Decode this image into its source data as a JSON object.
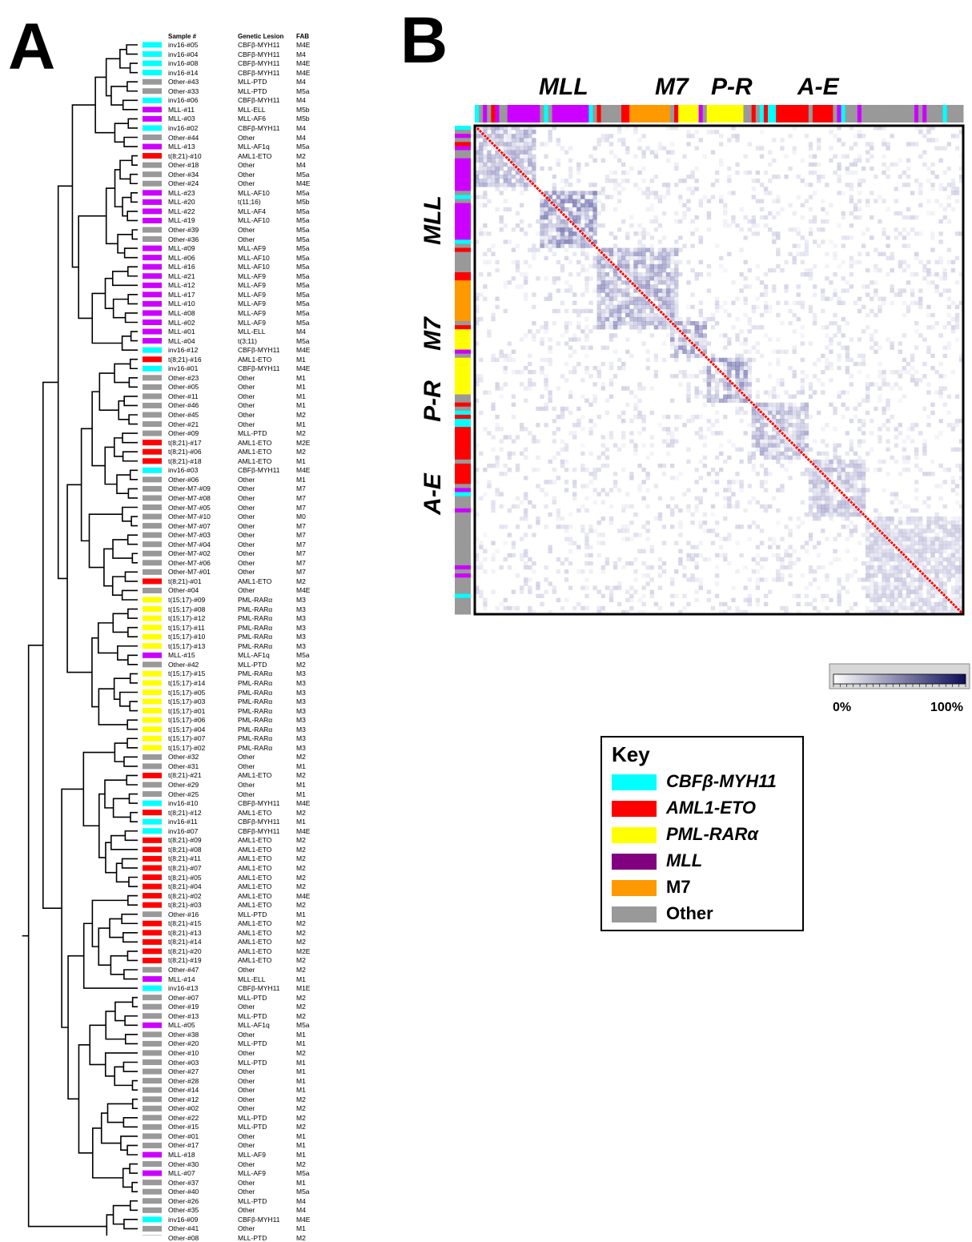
{
  "panels": {
    "a": "A",
    "b": "B"
  },
  "headers": {
    "sample": "Sample #",
    "lesion": "Genetic Lesion",
    "fab": "FAB"
  },
  "colors": {
    "cyan": "#00ffff",
    "red": "#ff0000",
    "yellow": "#ffff00",
    "purple": "#cc00ff",
    "orange": "#ff9900",
    "gray": "#999999",
    "key_purple": "#800080"
  },
  "rows": [
    {
      "s": "inv16-#05",
      "l": "CBFβ-MYH11",
      "f": "M4E",
      "c": "cyan"
    },
    {
      "s": "inv16-#04",
      "l": "CBFβ-MYH11",
      "f": "M4",
      "c": "cyan"
    },
    {
      "s": "inv16-#08",
      "l": "CBFβ-MYH11",
      "f": "M4E",
      "c": "cyan"
    },
    {
      "s": "inv16-#14",
      "l": "CBFβ-MYH11",
      "f": "M4E",
      "c": "cyan"
    },
    {
      "s": "Other-#43",
      "l": "MLL-PTD",
      "f": "M4",
      "c": "gray"
    },
    {
      "s": "Other-#33",
      "l": "MLL-PTD",
      "f": "M5a",
      "c": "gray"
    },
    {
      "s": "inv16-#06",
      "l": "CBFβ-MYH11",
      "f": "M4",
      "c": "cyan"
    },
    {
      "s": "MLL-#11",
      "l": "MLL-ELL",
      "f": "M5b",
      "c": "purple"
    },
    {
      "s": "MLL-#03",
      "l": "MLL-AF6",
      "f": "M5b",
      "c": "purple"
    },
    {
      "s": "inv16-#02",
      "l": "CBFβ-MYH11",
      "f": "M4",
      "c": "cyan"
    },
    {
      "s": "Other-#44",
      "l": "Other",
      "f": "M4",
      "c": "gray"
    },
    {
      "s": "MLL-#13",
      "l": "MLL-AF1q",
      "f": "M5a",
      "c": "purple"
    },
    {
      "s": "t(8;21)-#10",
      "l": "AML1-ETO",
      "f": "M2",
      "c": "red"
    },
    {
      "s": "Other-#18",
      "l": "Other",
      "f": "M4",
      "c": "gray"
    },
    {
      "s": "Other-#34",
      "l": "Other",
      "f": "M5a",
      "c": "gray"
    },
    {
      "s": "Other-#24",
      "l": "Other",
      "f": "M4E",
      "c": "gray"
    },
    {
      "s": "MLL-#23",
      "l": "MLL-AF10",
      "f": "M5a",
      "c": "purple"
    },
    {
      "s": "MLL-#20",
      "l": "t(11;16)",
      "f": "M5b",
      "c": "purple"
    },
    {
      "s": "MLL-#22",
      "l": "MLL-AF4",
      "f": "M5a",
      "c": "purple"
    },
    {
      "s": "MLL-#19",
      "l": "MLL-AF10",
      "f": "M5a",
      "c": "purple"
    },
    {
      "s": "Other-#39",
      "l": "Other",
      "f": "M5a",
      "c": "gray"
    },
    {
      "s": "Other-#36",
      "l": "Other",
      "f": "M5a",
      "c": "gray"
    },
    {
      "s": "MLL-#09",
      "l": "MLL-AF9",
      "f": "M5a",
      "c": "purple"
    },
    {
      "s": "MLL-#06",
      "l": "MLL-AF10",
      "f": "M5a",
      "c": "purple"
    },
    {
      "s": "MLL-#16",
      "l": "MLL-AF10",
      "f": "M5a",
      "c": "purple"
    },
    {
      "s": "MLL-#21",
      "l": "MLL-AF9",
      "f": "M5a",
      "c": "purple"
    },
    {
      "s": "MLL-#12",
      "l": "MLL-AF9",
      "f": "M5a",
      "c": "purple"
    },
    {
      "s": "MLL-#17",
      "l": "MLL-AF9",
      "f": "M5a",
      "c": "purple"
    },
    {
      "s": "MLL-#10",
      "l": "MLL-AF9",
      "f": "M5a",
      "c": "purple"
    },
    {
      "s": "MLL-#08",
      "l": "MLL-AF9",
      "f": "M5a",
      "c": "purple"
    },
    {
      "s": "MLL-#02",
      "l": "MLL-AF9",
      "f": "M5a",
      "c": "purple"
    },
    {
      "s": "MLL-#01",
      "l": "MLL-ELL",
      "f": "M4",
      "c": "purple"
    },
    {
      "s": "MLL-#04",
      "l": "t(3;11)",
      "f": "M5a",
      "c": "purple"
    },
    {
      "s": "inv16-#12",
      "l": "CBFβ-MYH11",
      "f": "M4E",
      "c": "cyan"
    },
    {
      "s": "t(8;21)-#16",
      "l": "AML1-ETO",
      "f": "M1",
      "c": "red"
    },
    {
      "s": "inv16-#01",
      "l": "CBFβ-MYH11",
      "f": "M4E",
      "c": "cyan"
    },
    {
      "s": "Other-#23",
      "l": "Other",
      "f": "M1",
      "c": "gray"
    },
    {
      "s": "Other-#05",
      "l": "Other",
      "f": "M1",
      "c": "gray"
    },
    {
      "s": "Other-#11",
      "l": "Other",
      "f": "M1",
      "c": "gray"
    },
    {
      "s": "Other-#46",
      "l": "Other",
      "f": "M1",
      "c": "gray"
    },
    {
      "s": "Other-#45",
      "l": "Other",
      "f": "M2",
      "c": "gray"
    },
    {
      "s": "Other-#21",
      "l": "Other",
      "f": "M1",
      "c": "gray"
    },
    {
      "s": "Other-#09",
      "l": "MLL-PTD",
      "f": "M2",
      "c": "gray"
    },
    {
      "s": "t(8;21)-#17",
      "l": "AML1-ETO",
      "f": "M2E",
      "c": "red"
    },
    {
      "s": "t(8;21)-#06",
      "l": "AML1-ETO",
      "f": "M2",
      "c": "red"
    },
    {
      "s": "t(8;21)-#18",
      "l": "AML1-ETO",
      "f": "M1",
      "c": "red"
    },
    {
      "s": "inv16-#03",
      "l": "CBFβ-MYH11",
      "f": "M4E",
      "c": "cyan"
    },
    {
      "s": "Other-#06",
      "l": "Other",
      "f": "M1",
      "c": "gray"
    },
    {
      "s": "Other-M7-#09",
      "l": "Other",
      "f": "M7",
      "c": "gray"
    },
    {
      "s": "Other-M7-#08",
      "l": "Other",
      "f": "M7",
      "c": "gray"
    },
    {
      "s": "Other-M7-#05",
      "l": "Other",
      "f": "M7",
      "c": "gray"
    },
    {
      "s": "Other-M7-#10",
      "l": "Other",
      "f": "M0",
      "c": "gray"
    },
    {
      "s": "Other-M7-#07",
      "l": "Other",
      "f": "M7",
      "c": "gray"
    },
    {
      "s": "Other-M7-#03",
      "l": "Other",
      "f": "M7",
      "c": "gray"
    },
    {
      "s": "Other-M7-#04",
      "l": "Other",
      "f": "M7",
      "c": "gray"
    },
    {
      "s": "Other-M7-#02",
      "l": "Other",
      "f": "M7",
      "c": "gray"
    },
    {
      "s": "Other-M7-#06",
      "l": "Other",
      "f": "M7",
      "c": "gray"
    },
    {
      "s": "Other-M7-#01",
      "l": "Other",
      "f": "M7",
      "c": "gray"
    },
    {
      "s": "t(8;21)-#01",
      "l": "AML1-ETO",
      "f": "M2",
      "c": "red"
    },
    {
      "s": "Other-#04",
      "l": "Other",
      "f": "M4E",
      "c": "gray"
    },
    {
      "s": "t(15;17)-#09",
      "l": "PML-RARα",
      "f": "M3",
      "c": "yellow"
    },
    {
      "s": "t(15;17)-#08",
      "l": "PML-RARα",
      "f": "M3",
      "c": "yellow"
    },
    {
      "s": "t(15;17)-#12",
      "l": "PML-RARα",
      "f": "M3",
      "c": "yellow"
    },
    {
      "s": "t(15;17)-#11",
      "l": "PML-RARα",
      "f": "M3",
      "c": "yellow"
    },
    {
      "s": "t(15;17)-#10",
      "l": "PML-RARα",
      "f": "M3",
      "c": "yellow"
    },
    {
      "s": "t(15;17)-#13",
      "l": "PML-RARα",
      "f": "M3",
      "c": "yellow"
    },
    {
      "s": "MLL-#15",
      "l": "MLL-AF1q",
      "f": "M5a",
      "c": "purple"
    },
    {
      "s": "Other-#42",
      "l": "MLL-PTD",
      "f": "M2",
      "c": "gray"
    },
    {
      "s": "t(15;17)-#15",
      "l": "PML-RARα",
      "f": "M3",
      "c": "yellow"
    },
    {
      "s": "t(15;17)-#14",
      "l": "PML-RARα",
      "f": "M3",
      "c": "yellow"
    },
    {
      "s": "t(15;17)-#05",
      "l": "PML-RARα",
      "f": "M3",
      "c": "yellow"
    },
    {
      "s": "t(15;17)-#03",
      "l": "PML-RARα",
      "f": "M3",
      "c": "yellow"
    },
    {
      "s": "t(15;17)-#01",
      "l": "PML-RARα",
      "f": "M3",
      "c": "yellow"
    },
    {
      "s": "t(15;17)-#06",
      "l": "PML-RARα",
      "f": "M3",
      "c": "yellow"
    },
    {
      "s": "t(15;17)-#04",
      "l": "PML-RARα",
      "f": "M3",
      "c": "yellow"
    },
    {
      "s": "t(15;17)-#07",
      "l": "PML-RARα",
      "f": "M3",
      "c": "yellow"
    },
    {
      "s": "t(15;17)-#02",
      "l": "PML-RARα",
      "f": "M3",
      "c": "yellow"
    },
    {
      "s": "Other-#32",
      "l": "Other",
      "f": "M2",
      "c": "gray"
    },
    {
      "s": "Other-#31",
      "l": "Other",
      "f": "M1",
      "c": "gray"
    },
    {
      "s": "t(8;21)-#21",
      "l": "AML1-ETO",
      "f": "M2",
      "c": "red"
    },
    {
      "s": "Other-#29",
      "l": "Other",
      "f": "M1",
      "c": "gray"
    },
    {
      "s": "Other-#25",
      "l": "Other",
      "f": "M1",
      "c": "gray"
    },
    {
      "s": "inv16-#10",
      "l": "CBFβ-MYH11",
      "f": "M4E",
      "c": "cyan"
    },
    {
      "s": "t(8;21)-#12",
      "l": "AML1-ETO",
      "f": "M2",
      "c": "red"
    },
    {
      "s": "inv16-#11",
      "l": "CBFβ-MYH11",
      "f": "M1",
      "c": "cyan"
    },
    {
      "s": "inv16-#07",
      "l": "CBFβ-MYH11",
      "f": "M4E",
      "c": "cyan"
    },
    {
      "s": "t(8;21)-#09",
      "l": "AML1-ETO",
      "f": "M2",
      "c": "red"
    },
    {
      "s": "t(8;21)-#08",
      "l": "AML1-ETO",
      "f": "M2",
      "c": "red"
    },
    {
      "s": "t(8;21)-#11",
      "l": "AML1-ETO",
      "f": "M2",
      "c": "red"
    },
    {
      "s": "t(8;21)-#07",
      "l": "AML1-ETO",
      "f": "M2",
      "c": "red"
    },
    {
      "s": "t(8;21)-#05",
      "l": "AML1-ETO",
      "f": "M2",
      "c": "red"
    },
    {
      "s": "t(8;21)-#04",
      "l": "AML1-ETO",
      "f": "M2",
      "c": "red"
    },
    {
      "s": "t(8;21)-#02",
      "l": "AML1-ETO",
      "f": "M4E",
      "c": "red"
    },
    {
      "s": "t(8;21)-#03",
      "l": "AML1-ETO",
      "f": "M2",
      "c": "red"
    },
    {
      "s": "Other-#16",
      "l": "MLL-PTD",
      "f": "M1",
      "c": "gray"
    },
    {
      "s": "t(8;21)-#15",
      "l": "AML1-ETO",
      "f": "M2",
      "c": "red"
    },
    {
      "s": "t(8;21)-#13",
      "l": "AML1-ETO",
      "f": "M2",
      "c": "red"
    },
    {
      "s": "t(8;21)-#14",
      "l": "AML1-ETO",
      "f": "M2",
      "c": "red"
    },
    {
      "s": "t(8;21)-#20",
      "l": "AML1-ETO",
      "f": "M2E",
      "c": "red"
    },
    {
      "s": "t(8;21)-#19",
      "l": "AML1-ETO",
      "f": "M2",
      "c": "red"
    },
    {
      "s": "Other-#47",
      "l": "Other",
      "f": "M2",
      "c": "gray"
    },
    {
      "s": "MLL-#14",
      "l": "MLL-ELL",
      "f": "M1",
      "c": "purple"
    },
    {
      "s": "inv16-#13",
      "l": "CBFβ-MYH11",
      "f": "M1E",
      "c": "cyan"
    },
    {
      "s": "Other-#07",
      "l": "MLL-PTD",
      "f": "M2",
      "c": "gray"
    },
    {
      "s": "Other-#19",
      "l": "Other",
      "f": "M2",
      "c": "gray"
    },
    {
      "s": "Other-#13",
      "l": "MLL-PTD",
      "f": "M2",
      "c": "gray"
    },
    {
      "s": "MLL-#05",
      "l": "MLL-AF1q",
      "f": "M5a",
      "c": "purple"
    },
    {
      "s": "Other-#38",
      "l": "Other",
      "f": "M1",
      "c": "gray"
    },
    {
      "s": "Other-#20",
      "l": "MLL-PTD",
      "f": "M1",
      "c": "gray"
    },
    {
      "s": "Other-#10",
      "l": "Other",
      "f": "M2",
      "c": "gray"
    },
    {
      "s": "Other-#03",
      "l": "MLL-PTD",
      "f": "M1",
      "c": "gray"
    },
    {
      "s": "Other-#27",
      "l": "Other",
      "f": "M1",
      "c": "gray"
    },
    {
      "s": "Other-#28",
      "l": "Other",
      "f": "M1",
      "c": "gray"
    },
    {
      "s": "Other-#14",
      "l": "Other",
      "f": "M1",
      "c": "gray"
    },
    {
      "s": "Other-#12",
      "l": "Other",
      "f": "M2",
      "c": "gray"
    },
    {
      "s": "Other-#02",
      "l": "Other",
      "f": "M2",
      "c": "gray"
    },
    {
      "s": "Other-#22",
      "l": "MLL-PTD",
      "f": "M2",
      "c": "gray"
    },
    {
      "s": "Other-#15",
      "l": "MLL-PTD",
      "f": "M2",
      "c": "gray"
    },
    {
      "s": "Other-#01",
      "l": "Other",
      "f": "M1",
      "c": "gray"
    },
    {
      "s": "Other-#17",
      "l": "Other",
      "f": "M1",
      "c": "gray"
    },
    {
      "s": "MLL-#18",
      "l": "MLL-AF9",
      "f": "M1",
      "c": "purple"
    },
    {
      "s": "Other-#30",
      "l": "Other",
      "f": "M2",
      "c": "gray"
    },
    {
      "s": "MLL-#07",
      "l": "MLL-AF9",
      "f": "M5a",
      "c": "purple"
    },
    {
      "s": "Other-#37",
      "l": "Other",
      "f": "M1",
      "c": "gray"
    },
    {
      "s": "Other-#40",
      "l": "Other",
      "f": "M5a",
      "c": "gray"
    },
    {
      "s": "Other-#26",
      "l": "MLL-PTD",
      "f": "M4",
      "c": "gray"
    },
    {
      "s": "Other-#35",
      "l": "Other",
      "f": "M4",
      "c": "gray"
    },
    {
      "s": "inv16-#09",
      "l": "CBFβ-MYH11",
      "f": "M4E",
      "c": "cyan"
    },
    {
      "s": "Other-#41",
      "l": "Other",
      "f": "M1",
      "c": "gray"
    },
    {
      "s": "Other-#08",
      "l": "MLL-PTD",
      "f": "M2",
      "c": "gray"
    }
  ],
  "heatmap": {
    "blocks": [
      "MLL",
      "M7",
      "P-R",
      "A-E"
    ],
    "colorbar": {
      "min": "0%",
      "max": "100%"
    }
  },
  "key": {
    "title": "Key",
    "items": [
      {
        "label": "CBFβ-MYH11",
        "color": "cyan",
        "italic": true
      },
      {
        "label": "AML1-ETO",
        "color": "red",
        "italic": true
      },
      {
        "label": "PML-RARα",
        "color": "yellow",
        "italic": true
      },
      {
        "label": "MLL",
        "color": "key_purple",
        "italic": true
      },
      {
        "label": "M7",
        "color": "orange",
        "italic": false
      },
      {
        "label": "Other",
        "color": "gray",
        "italic": false
      }
    ]
  }
}
